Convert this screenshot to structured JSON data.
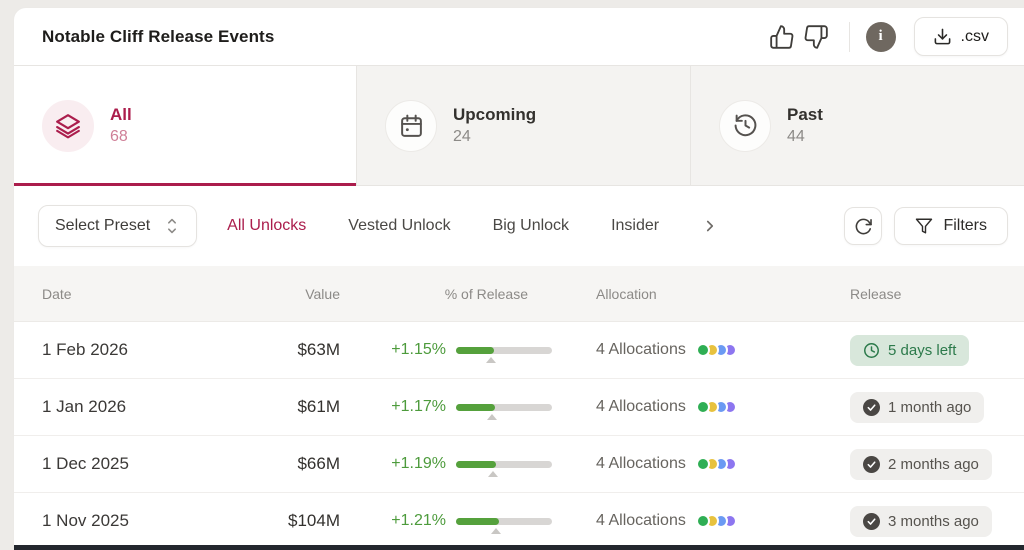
{
  "colors": {
    "accent": "#ab1d4c",
    "accent_soft": "#cf7f97",
    "green_text": "#4d9b3c",
    "bar_green": "#55a13c",
    "badge_green_bg": "#d8e7db",
    "badge_green_text": "#2c7a4b",
    "badge_gray_bg": "#f0efed",
    "page_bg": "#edebe8",
    "dark_strip": "#23272e"
  },
  "header": {
    "title": "Notable Cliff Release Events",
    "csv_label": ".csv",
    "info_glyph": "i",
    "icons": [
      "thumbs-up-icon",
      "thumbs-down-icon",
      "info-icon",
      "download-icon"
    ]
  },
  "tabs": [
    {
      "label": "All",
      "count": "68",
      "icon": "layers-icon",
      "active": true
    },
    {
      "label": "Upcoming",
      "count": "24",
      "icon": "calendar-icon",
      "active": false
    },
    {
      "label": "Past",
      "count": "44",
      "icon": "history-clock-icon",
      "active": false
    }
  ],
  "filters": {
    "preset_label": "Select Preset",
    "links": [
      "All Unlocks",
      "Vested Unlock",
      "Big Unlock",
      "Insider"
    ],
    "active_link": "All Unlocks",
    "more_icon": "chevron-right-icon",
    "refresh_icon": "refresh-icon",
    "filters_label": "Filters",
    "filters_icon": "funnel-icon"
  },
  "table": {
    "columns": [
      "Date",
      "Value",
      "% of Release",
      "Allocation",
      "Release"
    ],
    "allocation_dot_colors": [
      "#2fae54",
      "#e8c23e",
      "#6b9af3",
      "#8d76f0"
    ],
    "rows": [
      {
        "date": "1 Feb 2026",
        "value": "$63M",
        "percent": "+1.15%",
        "progress_pct": 40,
        "allocations": "4 Allocations",
        "status": "5 days left",
        "status_type": "upcoming"
      },
      {
        "date": "1 Jan 2026",
        "value": "$61M",
        "percent": "+1.17%",
        "progress_pct": 41,
        "allocations": "4 Allocations",
        "status": "1 month ago",
        "status_type": "past"
      },
      {
        "date": "1 Dec 2025",
        "value": "$66M",
        "percent": "+1.19%",
        "progress_pct": 42,
        "allocations": "4 Allocations",
        "status": "2 months ago",
        "status_type": "past"
      },
      {
        "date": "1 Nov 2025",
        "value": "$104M",
        "percent": "+1.21%",
        "progress_pct": 45,
        "allocations": "4 Allocations",
        "status": "3 months ago",
        "status_type": "past"
      }
    ]
  }
}
